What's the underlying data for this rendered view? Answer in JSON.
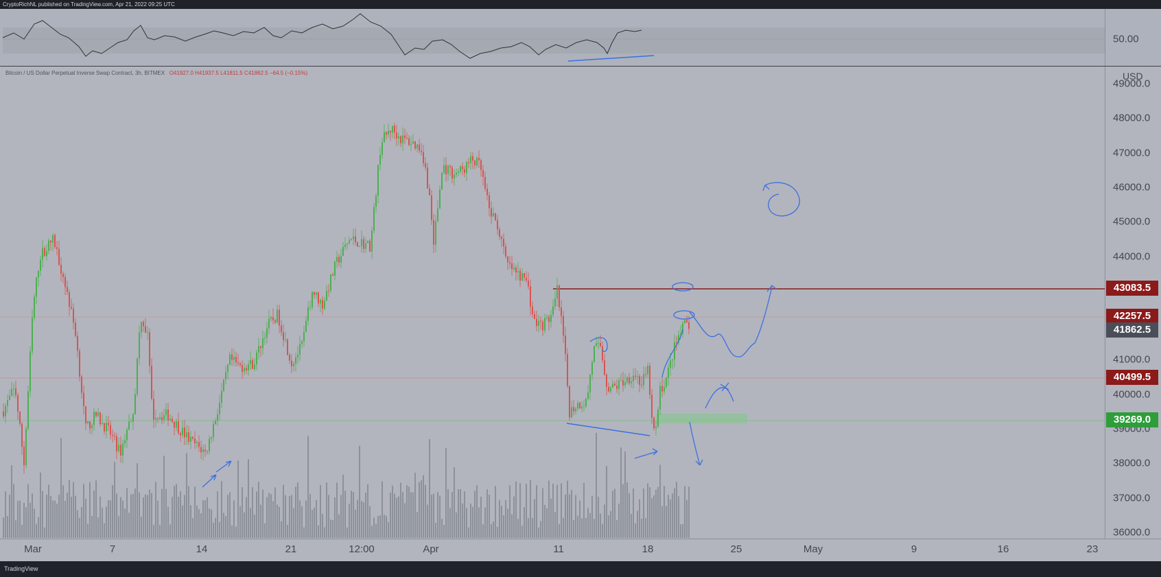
{
  "header": {
    "publish_text": "CryptoRichNL published on TradingView.com, Apr 21, 2022 09:25 UTC"
  },
  "footer": {
    "brand_text": "TradingView"
  },
  "chart": {
    "symbol_text": "Bitcoin / US Dollar Perpetual Inverse Swap Contract, 3h, BITMEX",
    "ohlc_text": "O41927.0 H41937.5 L41811.5 C41862.5 −64.5 (−0.15%)",
    "currency": "USD",
    "rsi_level_label": "50.00",
    "colors": {
      "up": "#4caf50",
      "down": "#d9534f",
      "resistance": "#8b1a1a",
      "support_tag": "#2e9d3a",
      "current_tag": "#4a4e58",
      "drawing": "#3b6fe0"
    }
  },
  "price_axis": {
    "ticks": [
      "49000.0",
      "48000.0",
      "47000.0",
      "46000.0",
      "45000.0",
      "44000.0",
      "43000.0",
      "42000.0",
      "41000.0",
      "40000.0",
      "39000.0",
      "38000.0",
      "37000.0",
      "36000.0"
    ]
  },
  "price_tags": [
    {
      "label": "43083.5",
      "price": 43083.5,
      "color": "#8b1a1a"
    },
    {
      "label": "42257.5",
      "price": 42257.5,
      "color": "#8b1a1a"
    },
    {
      "label": "41862.5",
      "price": 41862.5,
      "color": "#4a4e58"
    },
    {
      "label": "40499.5",
      "price": 40499.5,
      "color": "#8b1a1a"
    },
    {
      "label": "39269.0",
      "price": 39269.0,
      "color": "#2e9d3a"
    }
  ],
  "time_axis": {
    "labels": [
      "Mar",
      "7",
      "14",
      "21",
      "12:00",
      "Apr",
      "11",
      "18",
      "25",
      "May",
      "9",
      "16",
      "23"
    ]
  }
}
